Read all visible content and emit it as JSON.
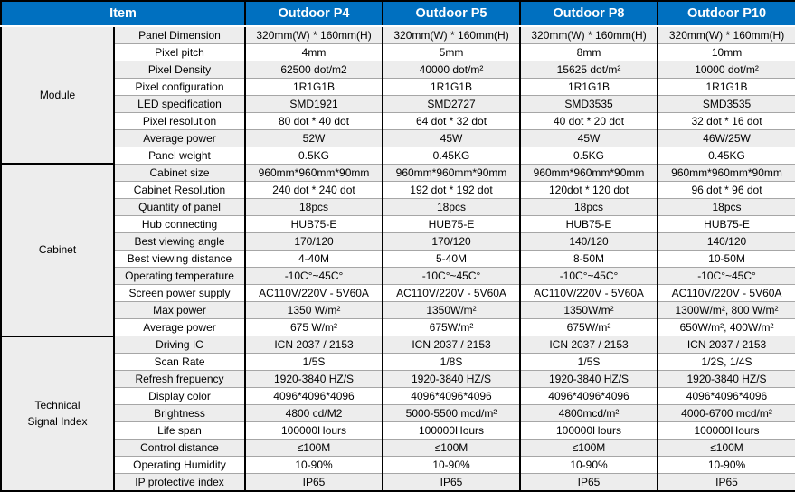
{
  "header": {
    "item_label": "Item",
    "product_columns": [
      "Outdoor P4",
      "Outdoor P5",
      "Outdoor P8",
      "Outdoor P10"
    ]
  },
  "colors": {
    "header_bg": "#0070C0",
    "header_text": "#FFFFFF",
    "row_stripe": "#EDEDED",
    "row_plain": "#FFFFFF",
    "grid_dark": "#000000",
    "grid_light": "#A6A6A6"
  },
  "groups": [
    {
      "label": "Module",
      "rows": [
        {
          "label": "Panel Dimension",
          "values": [
            "320mm(W) * 160mm(H)",
            "320mm(W) * 160mm(H)",
            "320mm(W) * 160mm(H)",
            "320mm(W) * 160mm(H)"
          ]
        },
        {
          "label": "Pixel pitch",
          "values": [
            "4mm",
            "5mm",
            "8mm",
            "10mm"
          ]
        },
        {
          "label": "Pixel Density",
          "values": [
            "62500 dot/m2",
            "40000 dot/m²",
            "15625 dot/m²",
            "10000 dot/m²"
          ]
        },
        {
          "label": "Pixel configuration",
          "values": [
            "1R1G1B",
            "1R1G1B",
            "1R1G1B",
            "1R1G1B"
          ]
        },
        {
          "label": "LED specification",
          "values": [
            "SMD1921",
            "SMD2727",
            "SMD3535",
            "SMD3535"
          ]
        },
        {
          "label": "Pixel resolution",
          "values": [
            "80 dot * 40 dot",
            "64 dot * 32 dot",
            "40 dot * 20 dot",
            "32 dot * 16 dot"
          ]
        },
        {
          "label": "Average power",
          "values": [
            "52W",
            "45W",
            "45W",
            "46W/25W"
          ]
        },
        {
          "label": "Panel weight",
          "values": [
            "0.5KG",
            "0.45KG",
            "0.5KG",
            "0.45KG"
          ]
        }
      ]
    },
    {
      "label": "Cabinet",
      "rows": [
        {
          "label": "Cabinet size",
          "values": [
            "960mm*960mm*90mm",
            "960mm*960mm*90mm",
            "960mm*960mm*90mm",
            "960mm*960mm*90mm"
          ]
        },
        {
          "label": "Cabinet Resolution",
          "values": [
            "240 dot * 240 dot",
            "192 dot * 192 dot",
            "120dot * 120 dot",
            "96 dot * 96 dot"
          ]
        },
        {
          "label": "Quantity of panel",
          "values": [
            "18pcs",
            "18pcs",
            "18pcs",
            "18pcs"
          ]
        },
        {
          "label": "Hub connecting",
          "values": [
            "HUB75-E",
            "HUB75-E",
            "HUB75-E",
            "HUB75-E"
          ]
        },
        {
          "label": "Best viewing angle",
          "values": [
            "170/120",
            "170/120",
            "140/120",
            "140/120"
          ]
        },
        {
          "label": "Best viewing distance",
          "values": [
            "4-40M",
            "5-40M",
            "8-50M",
            "10-50M"
          ]
        },
        {
          "label": "Operating temperature",
          "values": [
            "-10C°~45C°",
            "-10C°~45C°",
            "-10C°~45C°",
            "-10C°~45C°"
          ]
        },
        {
          "label": "Screen power supply",
          "values": [
            "AC110V/220V - 5V60A",
            "AC110V/220V - 5V60A",
            "AC110V/220V - 5V60A",
            "AC110V/220V - 5V60A"
          ]
        },
        {
          "label": "Max power",
          "values": [
            "1350 W/m²",
            "1350W/m²",
            "1350W/m²",
            "1300W/m², 800 W/m²"
          ]
        },
        {
          "label": "Average power",
          "values": [
            "675 W/m²",
            "675W/m²",
            "675W/m²",
            "650W/m², 400W/m²"
          ]
        }
      ]
    },
    {
      "label": "Technical Signal Index",
      "rows": [
        {
          "label": "Driving IC",
          "values": [
            "ICN 2037 / 2153",
            "ICN 2037 / 2153",
            "ICN 2037 / 2153",
            "ICN 2037 / 2153"
          ]
        },
        {
          "label": "Scan Rate",
          "values": [
            "1/5S",
            "1/8S",
            "1/5S",
            "1/2S, 1/4S"
          ]
        },
        {
          "label": "Refresh frepuency",
          "values": [
            "1920-3840 HZ/S",
            "1920-3840 HZ/S",
            "1920-3840 HZ/S",
            "1920-3840 HZ/S"
          ]
        },
        {
          "label": "Display color",
          "values": [
            "4096*4096*4096",
            "4096*4096*4096",
            "4096*4096*4096",
            "4096*4096*4096"
          ]
        },
        {
          "label": "Brightness",
          "values": [
            "4800 cd/M2",
            "5000-5500 mcd/m²",
            "4800mcd/m²",
            "4000-6700 mcd/m²"
          ]
        },
        {
          "label": "Life span",
          "values": [
            "100000Hours",
            "100000Hours",
            "100000Hours",
            "100000Hours"
          ]
        },
        {
          "label": "Control distance",
          "values": [
            "≤100M",
            "≤100M",
            "≤100M",
            "≤100M"
          ]
        },
        {
          "label": "Operating Humidity",
          "values": [
            "10-90%",
            "10-90%",
            "10-90%",
            "10-90%"
          ]
        },
        {
          "label": "IP protective index",
          "values": [
            "IP65",
            "IP65",
            "IP65",
            "IP65"
          ]
        }
      ]
    }
  ]
}
